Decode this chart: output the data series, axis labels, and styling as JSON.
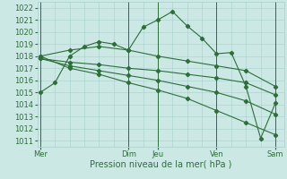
{
  "background_color": "#cce8e4",
  "grid_color": "#a8d0cc",
  "line_color": "#2d6e3a",
  "marker_color": "#2d6e3a",
  "ylim": [
    1010.5,
    1022.5
  ],
  "yticks": [
    1011,
    1012,
    1013,
    1014,
    1015,
    1016,
    1017,
    1018,
    1019,
    1020,
    1021,
    1022
  ],
  "xlabel": "Pression niveau de la mer( hPa )",
  "xlabel_fontsize": 7,
  "tick_fontsize": 6,
  "day_labels": [
    "Mer",
    "",
    "Dim",
    "Jeu",
    "",
    "Ven",
    "",
    "Sam"
  ],
  "day_positions": [
    0,
    1.5,
    3,
    4,
    5,
    6,
    7,
    8
  ],
  "vlines": [
    0,
    3,
    4,
    6,
    8
  ],
  "xlim": [
    -0.1,
    8.3
  ],
  "series": [
    {
      "x": [
        0,
        0.5,
        1,
        1.5,
        2,
        2.5,
        3,
        3.5,
        4,
        4.5,
        5,
        5.5,
        6,
        6.5,
        7,
        7.5,
        8
      ],
      "y": [
        1015.0,
        1015.8,
        1018.0,
        1018.8,
        1019.2,
        1019.0,
        1018.5,
        1020.4,
        1021.0,
        1021.7,
        1020.5,
        1019.5,
        1018.2,
        1018.3,
        1015.5,
        1011.2,
        1014.1
      ]
    },
    {
      "x": [
        0,
        1,
        2,
        3,
        4,
        5,
        6,
        7,
        8
      ],
      "y": [
        1018.0,
        1018.5,
        1018.8,
        1018.5,
        1018.0,
        1017.6,
        1017.2,
        1016.8,
        1015.5
      ]
    },
    {
      "x": [
        0,
        1,
        2,
        3,
        4,
        5,
        6,
        7,
        8
      ],
      "y": [
        1017.8,
        1017.5,
        1017.3,
        1017.0,
        1016.8,
        1016.5,
        1016.2,
        1015.8,
        1014.8
      ]
    },
    {
      "x": [
        0,
        1,
        2,
        3,
        4,
        5,
        6,
        7,
        8
      ],
      "y": [
        1017.8,
        1017.2,
        1016.8,
        1016.4,
        1016.0,
        1015.5,
        1015.0,
        1014.3,
        1013.2
      ]
    },
    {
      "x": [
        0,
        1,
        2,
        3,
        4,
        5,
        6,
        7,
        8
      ],
      "y": [
        1018.0,
        1017.0,
        1016.5,
        1015.8,
        1015.2,
        1014.5,
        1013.5,
        1012.5,
        1011.5
      ]
    }
  ]
}
